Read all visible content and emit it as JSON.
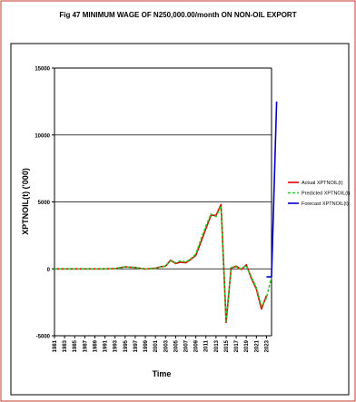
{
  "chart_data": {
    "type": "line",
    "title": "Fig 47  MINIMUM WAGE OF N250,000.00/month ON NON-OIL EXPORT",
    "xlabel": "Time",
    "ylabel": "XPTNOIL(t) ('000)",
    "ylim": [
      -5000,
      15000
    ],
    "y_ticks": [
      "15000",
      "10000",
      "5000",
      "0",
      "-5000"
    ],
    "y_tick_values": [
      15000,
      10000,
      5000,
      0,
      -5000
    ],
    "gridlines_at": [
      10000,
      5000,
      0
    ],
    "legend_position": "right",
    "x_range": [
      1981,
      2024
    ],
    "x_tick_labels": [
      "1981",
      "1983",
      "1985",
      "1987",
      "1989",
      "1991",
      "1993",
      "1995",
      "1997",
      "1999",
      "2001",
      "2003",
      "2005",
      "2007",
      "2009",
      "2011",
      "2013",
      "2015",
      "2017",
      "2019",
      "2021",
      "2023"
    ],
    "series": [
      {
        "name": "Actual XPTNOIL(t)",
        "color": "#dd0000",
        "points": [
          [
            1981,
            0
          ],
          [
            1983,
            0
          ],
          [
            1985,
            0
          ],
          [
            1987,
            0
          ],
          [
            1989,
            0
          ],
          [
            1991,
            0
          ],
          [
            1993,
            20
          ],
          [
            1995,
            150
          ],
          [
            1997,
            100
          ],
          [
            1999,
            -20
          ],
          [
            2001,
            50
          ],
          [
            2002,
            150
          ],
          [
            2003,
            200
          ],
          [
            2004,
            650
          ],
          [
            2005,
            400
          ],
          [
            2006,
            500
          ],
          [
            2007,
            450
          ],
          [
            2008,
            700
          ],
          [
            2009,
            1000
          ],
          [
            2010,
            2000
          ],
          [
            2011,
            3000
          ],
          [
            2012,
            4000
          ],
          [
            2013,
            4000
          ],
          [
            2014,
            4800
          ],
          [
            2015,
            -4000
          ],
          [
            2016,
            50
          ],
          [
            2017,
            200
          ],
          [
            2018,
            -50
          ],
          [
            2019,
            300
          ],
          [
            2020,
            -700
          ],
          [
            2021,
            -1500
          ],
          [
            2022,
            -3000
          ],
          [
            2023,
            -2000
          ]
        ]
      },
      {
        "name": "Predicted XPTNOIL(t)",
        "color": "#22cc22",
        "points": [
          [
            1981,
            0
          ],
          [
            1983,
            0
          ],
          [
            1985,
            0
          ],
          [
            1987,
            0
          ],
          [
            1989,
            0
          ],
          [
            1991,
            0
          ],
          [
            1993,
            20
          ],
          [
            1995,
            150
          ],
          [
            1997,
            100
          ],
          [
            1999,
            -20
          ],
          [
            2001,
            50
          ],
          [
            2002,
            150
          ],
          [
            2003,
            200
          ],
          [
            2004,
            600
          ],
          [
            2005,
            450
          ],
          [
            2006,
            600
          ],
          [
            2007,
            500
          ],
          [
            2008,
            750
          ],
          [
            2009,
            1100
          ],
          [
            2010,
            2200
          ],
          [
            2011,
            3200
          ],
          [
            2012,
            4100
          ],
          [
            2013,
            3900
          ],
          [
            2014,
            4700
          ],
          [
            2015,
            -3900
          ],
          [
            2016,
            100
          ],
          [
            2017,
            150
          ],
          [
            2018,
            0
          ],
          [
            2019,
            250
          ],
          [
            2020,
            -600
          ],
          [
            2021,
            -1400
          ],
          [
            2022,
            -2800
          ],
          [
            2023,
            -2200
          ],
          [
            2024,
            -600
          ]
        ]
      },
      {
        "name": "Forecast XPTNOIL(t)",
        "color": "#0000cc",
        "points": [
          [
            2023,
            -600
          ],
          [
            2024,
            -600
          ],
          [
            2025,
            12500
          ]
        ]
      }
    ]
  }
}
